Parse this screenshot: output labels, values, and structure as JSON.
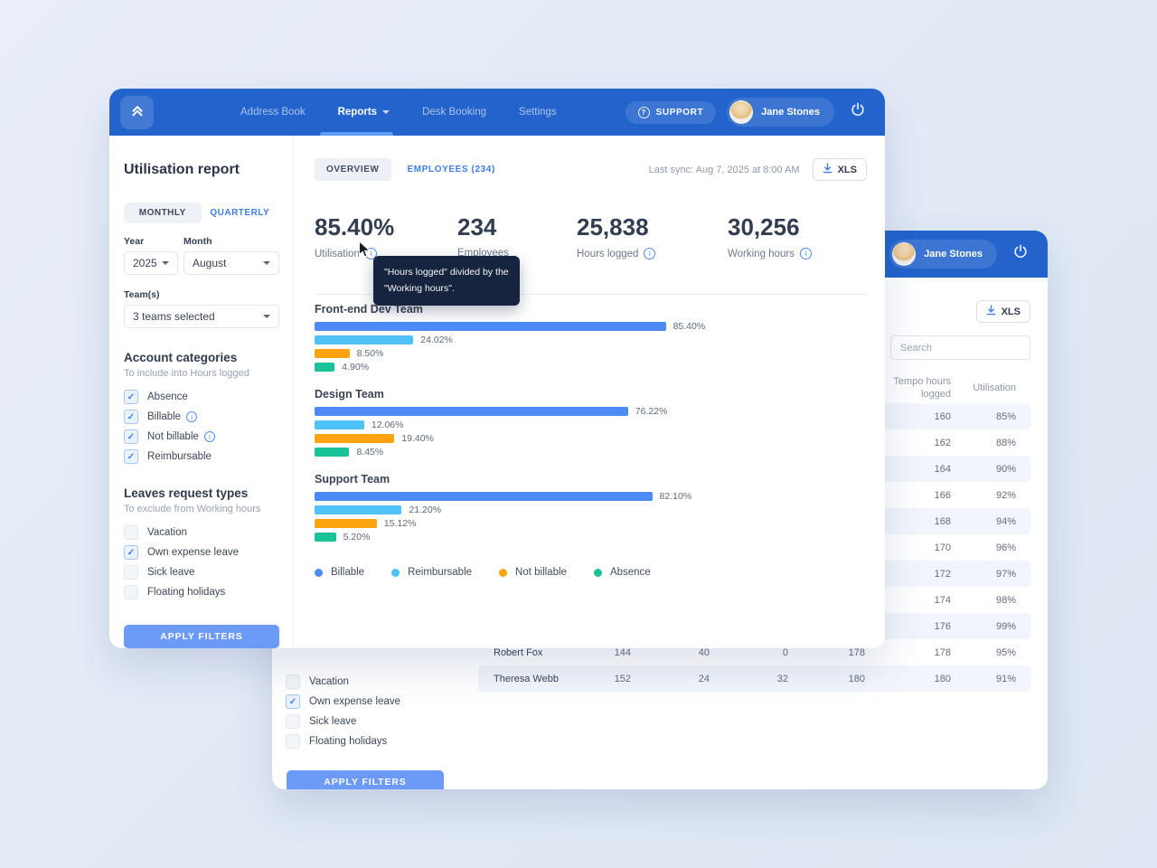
{
  "nav": {
    "items": [
      {
        "label": "Address Book"
      },
      {
        "label": "Reports",
        "active": true
      },
      {
        "label": "Desk Booking"
      },
      {
        "label": "Settings"
      }
    ],
    "support_label": "SUPPORT",
    "user_name": "Jane Stones"
  },
  "sidebar": {
    "title": "Utilisation report",
    "period_tabs": {
      "monthly": "MONTHLY",
      "quarterly": "QUARTERLY"
    },
    "year_label": "Year",
    "year_value": "2025",
    "month_label": "Month",
    "month_value": "August",
    "teams_label": "Team(s)",
    "teams_value": "3 teams selected",
    "account_categories": {
      "title": "Account categories",
      "subtitle": "To include into Hours logged",
      "items": [
        {
          "label": "Absence",
          "checked": true,
          "info": false
        },
        {
          "label": "Billable",
          "checked": true,
          "info": true
        },
        {
          "label": "Not billable",
          "checked": true,
          "info": true
        },
        {
          "label": "Reimbursable",
          "checked": true,
          "info": false
        }
      ]
    },
    "leaves": {
      "title": "Leaves request types",
      "subtitle": "To exclude from Working hours",
      "items": [
        {
          "label": "Vacation",
          "checked": false
        },
        {
          "label": "Own expense leave",
          "checked": true
        },
        {
          "label": "Sick leave",
          "checked": false
        },
        {
          "label": "Floating holidays",
          "checked": false
        }
      ]
    },
    "apply_button": "APPLY FILTERS"
  },
  "main": {
    "tabs": [
      {
        "label": "OVERVIEW",
        "active": true
      },
      {
        "label": "EMPLOYEES (234)",
        "active": false
      }
    ],
    "last_sync": "Last sync: Aug 7, 2025 at 8:00 AM",
    "xls_button": "XLS",
    "stats": [
      {
        "value": "85.40%",
        "label": "Utilisation",
        "info": true
      },
      {
        "value": "234",
        "label": "Employees",
        "info": false
      },
      {
        "value": "25,838",
        "label": "Hours logged",
        "info": true
      },
      {
        "value": "30,256",
        "label": "Working hours",
        "info": true
      }
    ],
    "tooltip": {
      "line1": "\"Hours logged\" divided by the",
      "line2": "\"Working hours\"."
    }
  },
  "chart_data": {
    "type": "bar",
    "orientation": "horizontal",
    "unit": "%",
    "xlim": [
      0,
      100
    ],
    "legend": [
      "Billable",
      "Reimbursable",
      "Not billable",
      "Absence"
    ],
    "colors": {
      "Billable": "#4c8bf5",
      "Reimbursable": "#4fc3f7",
      "Not billable": "#fea310",
      "Absence": "#19c298"
    },
    "groups": [
      {
        "team": "Front-end Dev Team",
        "values": [
          85.4,
          24.02,
          8.5,
          4.9
        ],
        "labels": [
          "85.40%",
          "24.02%",
          "8.50%",
          "4.90%"
        ]
      },
      {
        "team": "Design Team",
        "values": [
          76.22,
          12.06,
          19.4,
          8.45
        ],
        "labels": [
          "76.22%",
          "12.06%",
          "19.40%",
          "8.45%"
        ]
      },
      {
        "team": "Support Team",
        "values": [
          82.1,
          21.2,
          15.12,
          5.2
        ],
        "labels": [
          "82.10%",
          "21.20%",
          "15.12%",
          "5.20%"
        ]
      }
    ]
  },
  "back_window": {
    "user_name": "Jane Stones",
    "xls_button": "XLS",
    "search_placeholder": "Search",
    "table": {
      "col_tempo": "Tempo hours logged",
      "col_util": "Utilisation",
      "rows": [
        {
          "name": "",
          "c1": "",
          "c2": "",
          "c3": "",
          "c4": "",
          "tempo": "160",
          "util": "85%",
          "striped": true
        },
        {
          "name": "",
          "c1": "",
          "c2": "",
          "c3": "",
          "c4": "",
          "tempo": "162",
          "util": "88%",
          "striped": false
        },
        {
          "name": "",
          "c1": "",
          "c2": "",
          "c3": "",
          "c4": "",
          "tempo": "164",
          "util": "90%",
          "striped": true
        },
        {
          "name": "",
          "c1": "",
          "c2": "",
          "c3": "",
          "c4": "",
          "tempo": "166",
          "util": "92%",
          "striped": false
        },
        {
          "name": "",
          "c1": "",
          "c2": "",
          "c3": "",
          "c4": "",
          "tempo": "168",
          "util": "94%",
          "striped": true
        },
        {
          "name": "",
          "c1": "",
          "c2": "",
          "c3": "",
          "c4": "",
          "tempo": "170",
          "util": "96%",
          "striped": false
        },
        {
          "name": "",
          "c1": "",
          "c2": "",
          "c3": "",
          "c4": "",
          "tempo": "172",
          "util": "97%",
          "striped": true
        },
        {
          "name": "",
          "c1": "",
          "c2": "",
          "c3": "",
          "c4": "",
          "tempo": "174",
          "util": "98%",
          "striped": false
        },
        {
          "name": "",
          "c1": "",
          "c2": "",
          "c3": "",
          "c4": "",
          "tempo": "176",
          "util": "99%",
          "striped": true
        },
        {
          "name": "Robert Fox",
          "c1": "144",
          "c2": "40",
          "c3": "0",
          "c4": "178",
          "tempo": "178",
          "util": "95%",
          "striped": false
        },
        {
          "name": "Theresa Webb",
          "c1": "152",
          "c2": "24",
          "c3": "32",
          "c4": "180",
          "tempo": "180",
          "util": "91%",
          "striped": true
        }
      ]
    },
    "leaves_items": [
      {
        "label": "Vacation",
        "checked": false
      },
      {
        "label": "Own expense leave",
        "checked": true
      },
      {
        "label": "Sick leave",
        "checked": false
      },
      {
        "label": "Floating holidays",
        "checked": false
      }
    ],
    "apply_button": "APPLY FILTERS"
  }
}
